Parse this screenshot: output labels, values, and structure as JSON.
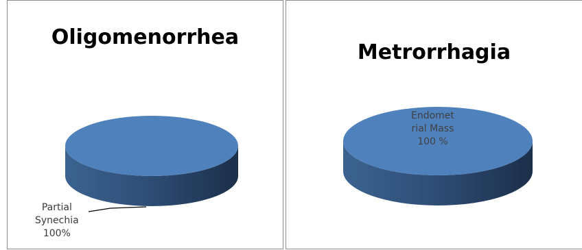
{
  "chart_data": [
    {
      "type": "pie",
      "title": "Oligomenorrhea",
      "categories": [
        "Partial Synechia"
      ],
      "values": [
        100
      ],
      "labels": [
        {
          "name_lines": [
            "Partial",
            "Synechia"
          ],
          "value_text": "100%"
        }
      ],
      "color": "#4f81bd",
      "legend": "none"
    },
    {
      "type": "pie",
      "title": "Metrorrhagia",
      "categories": [
        "Endometrial Mass"
      ],
      "values": [
        100
      ],
      "labels": [
        {
          "name_lines": [
            "Endomet",
            "rial Mass"
          ],
          "value_text": "100 %"
        }
      ],
      "color": "#4f81bd",
      "legend": "none"
    }
  ]
}
